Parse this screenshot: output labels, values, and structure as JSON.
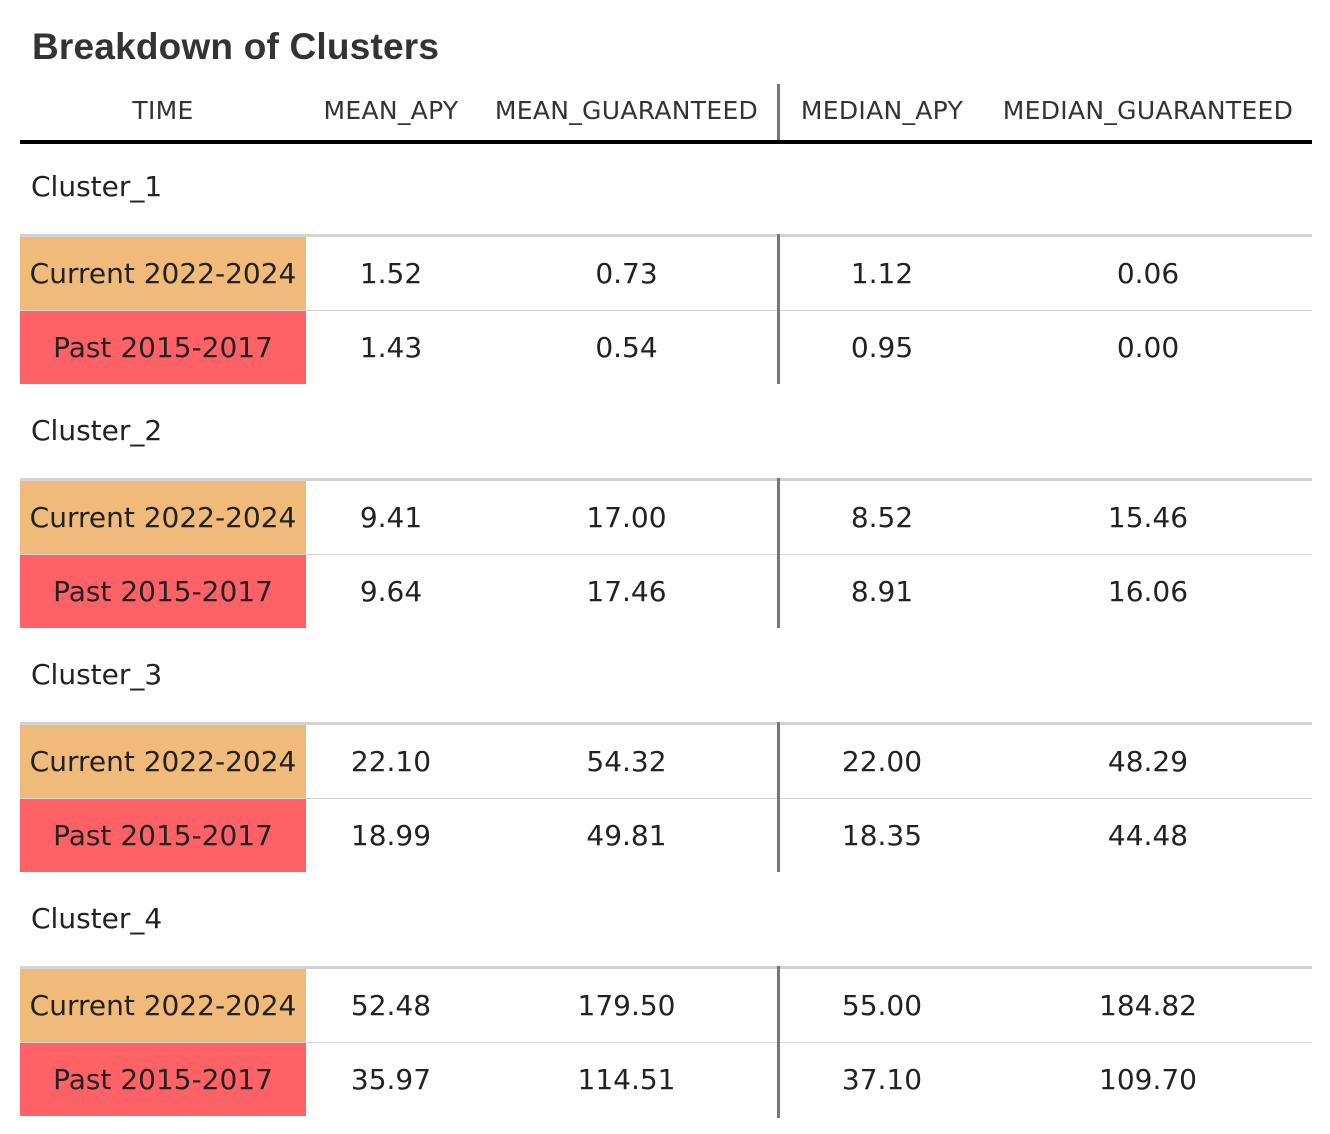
{
  "chart_data": {
    "type": "table",
    "title": "Breakdown of Clusters",
    "columns": [
      "TIME",
      "MEAN_APY",
      "MEAN_GUARANTEED",
      "MEDIAN_APY",
      "MEDIAN_GUARANTEED"
    ],
    "groups": [
      {
        "label": "Cluster_1",
        "rows": [
          {
            "time": "Current 2022-2024",
            "mean_apy": "1.52",
            "mean_guaranteed": "0.73",
            "median_apy": "1.12",
            "median_guaranteed": "0.06"
          },
          {
            "time": "Past 2015-2017",
            "mean_apy": "1.43",
            "mean_guaranteed": "0.54",
            "median_apy": "0.95",
            "median_guaranteed": "0.00"
          }
        ]
      },
      {
        "label": "Cluster_2",
        "rows": [
          {
            "time": "Current 2022-2024",
            "mean_apy": "9.41",
            "mean_guaranteed": "17.00",
            "median_apy": "8.52",
            "median_guaranteed": "15.46"
          },
          {
            "time": "Past 2015-2017",
            "mean_apy": "9.64",
            "mean_guaranteed": "17.46",
            "median_apy": "8.91",
            "median_guaranteed": "16.06"
          }
        ]
      },
      {
        "label": "Cluster_3",
        "rows": [
          {
            "time": "Current 2022-2024",
            "mean_apy": "22.10",
            "mean_guaranteed": "54.32",
            "median_apy": "22.00",
            "median_guaranteed": "48.29"
          },
          {
            "time": "Past 2015-2017",
            "mean_apy": "18.99",
            "mean_guaranteed": "49.81",
            "median_apy": "18.35",
            "median_guaranteed": "44.48"
          }
        ]
      },
      {
        "label": "Cluster_4",
        "rows": [
          {
            "time": "Current 2022-2024",
            "mean_apy": "52.48",
            "mean_guaranteed": "179.50",
            "median_apy": "55.00",
            "median_guaranteed": "184.82"
          },
          {
            "time": "Past 2015-2017",
            "mean_apy": "35.97",
            "mean_guaranteed": "114.51",
            "median_apy": "37.10",
            "median_guaranteed": "109.70"
          }
        ]
      }
    ],
    "colors": {
      "current": "#f0bb7a",
      "past": "#fe6267"
    }
  }
}
